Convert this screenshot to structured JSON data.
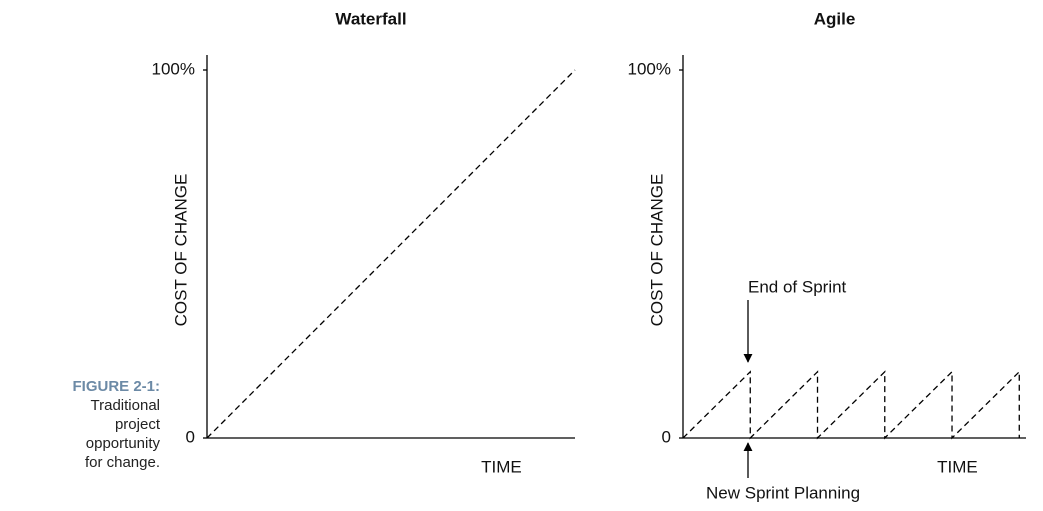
{
  "figure": {
    "label": "FIGURE 2-1:",
    "caption": "Traditional project opportunity for change."
  },
  "chart_data": [
    {
      "type": "line",
      "title": "Waterfall",
      "y_label": "COST OF CHANGE",
      "x_label": "TIME",
      "x": [
        0,
        1
      ],
      "xlim": [
        0,
        1
      ],
      "series": [
        {
          "color": "#000000",
          "values": [
            0,
            100
          ]
        }
      ],
      "ylim": [
        0,
        100
      ],
      "yticks": [
        0,
        {
          "value": 100,
          "label": "100%"
        }
      ]
    },
    {
      "type": "line",
      "title": "Agile",
      "y_label": "COST OF CHANGE",
      "x_label": "TIME",
      "x": [
        0,
        1,
        1,
        2,
        2,
        3,
        3,
        4,
        4,
        5,
        5
      ],
      "xlim": [
        0,
        5.1
      ],
      "series": [
        {
          "color": "#000000",
          "values": [
            0,
            18,
            0,
            18,
            0,
            18,
            0,
            18,
            0,
            18,
            0
          ]
        }
      ],
      "ylim": [
        0,
        100
      ],
      "yticks": [
        0,
        {
          "value": 100,
          "label": "100%"
        }
      ],
      "annotations": [
        "End of Sprint",
        "New Sprint Planning"
      ]
    }
  ]
}
